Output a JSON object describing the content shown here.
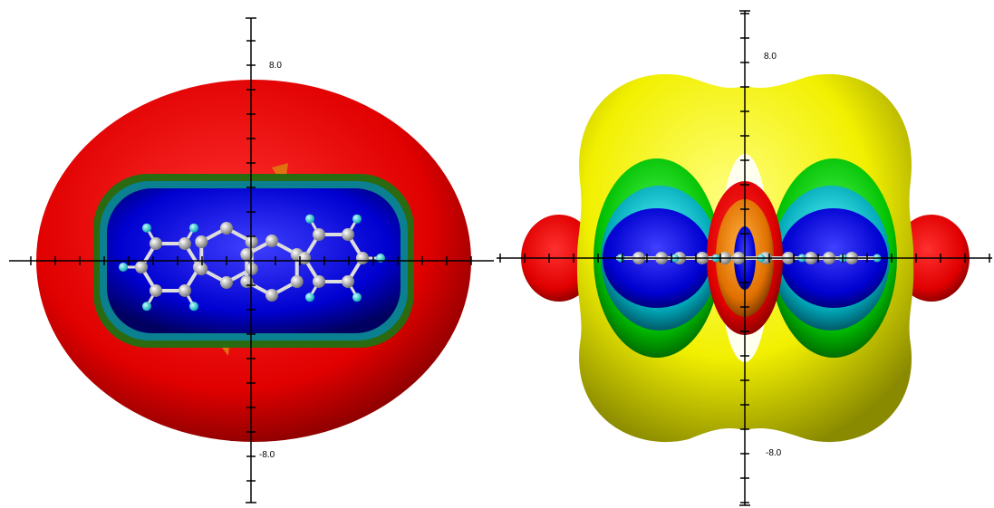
{
  "panels": [
    {
      "label_top": "8.0",
      "label_bottom": "-8.0"
    },
    {
      "label_top": "8.0",
      "label_bottom": "-8.0"
    }
  ]
}
